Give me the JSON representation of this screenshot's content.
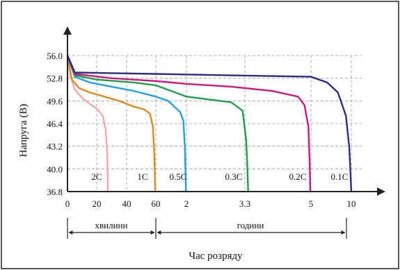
{
  "header_text": "",
  "chart_data": {
    "type": "line",
    "ylabel": "Напруга (В)",
    "xlabel": "Час розряду",
    "y_ticks": [
      "56.0",
      "52.8",
      "49.6",
      "46.4",
      "43.2",
      "40.0",
      "36.8"
    ],
    "x_ticks": [
      "0",
      "20",
      "40",
      "60",
      "2",
      "3.3",
      "5",
      "10"
    ],
    "ylim": [
      36.8,
      56.0
    ],
    "x_scale": "piecewise: minutes 0–60 on the left section, hours 1–10 on the right section",
    "grid": true,
    "units_minutes": "хвилини",
    "units_hours": "години",
    "series": [
      {
        "name": "2C",
        "color": "#f4a7b0",
        "points": [
          [
            0,
            56.0
          ],
          [
            2,
            53.2
          ],
          [
            5,
            51.2
          ],
          [
            10,
            50.0
          ],
          [
            15,
            49.2
          ],
          [
            20,
            48.5
          ],
          [
            24,
            47.5
          ],
          [
            26,
            45.5
          ],
          [
            27,
            42.0
          ],
          [
            27.5,
            36.8
          ]
        ]
      },
      {
        "name": "1C",
        "color": "#e08a1e",
        "points": [
          [
            0,
            56.0
          ],
          [
            3,
            52.6
          ],
          [
            8,
            51.4
          ],
          [
            15,
            50.8
          ],
          [
            25,
            50.2
          ],
          [
            35,
            49.6
          ],
          [
            45,
            48.8
          ],
          [
            52,
            48.4
          ],
          [
            56,
            47.8
          ],
          [
            58,
            46.0
          ],
          [
            59,
            42.0
          ],
          [
            59.6,
            36.8
          ]
        ]
      },
      {
        "name": "0.5C",
        "color": "#1aa3e0",
        "points": [
          [
            0,
            56.0
          ],
          [
            5,
            53.0
          ],
          [
            15,
            52.2
          ],
          [
            30,
            51.6
          ],
          [
            45,
            51.0
          ],
          [
            60,
            50.2
          ],
          [
            84,
            49.6
          ],
          [
            96,
            48.8
          ],
          [
            108,
            48.0
          ],
          [
            114,
            46.8
          ],
          [
            117,
            43.0
          ],
          [
            119,
            36.8
          ]
        ]
      },
      {
        "name": "0.3C",
        "color": "#1e9e4a",
        "points": [
          [
            0,
            56.0
          ],
          [
            5,
            53.2
          ],
          [
            20,
            52.6
          ],
          [
            45,
            52.2
          ],
          [
            60,
            51.8
          ],
          [
            90,
            51.0
          ],
          [
            120,
            50.2
          ],
          [
            150,
            49.8
          ],
          [
            180,
            49.4
          ],
          [
            195,
            48.2
          ],
          [
            200,
            44.0
          ],
          [
            202,
            40.0
          ],
          [
            203,
            36.8
          ]
        ]
      },
      {
        "name": "0.2C",
        "color": "#d0167e",
        "points": [
          [
            0,
            56.0
          ],
          [
            5,
            53.4
          ],
          [
            30,
            52.8
          ],
          [
            60,
            52.4
          ],
          [
            120,
            52.0
          ],
          [
            180,
            51.6
          ],
          [
            240,
            51.0
          ],
          [
            280,
            50.2
          ],
          [
            290,
            49.0
          ],
          [
            296,
            46.0
          ],
          [
            298,
            41.0
          ],
          [
            299,
            36.8
          ]
        ]
      },
      {
        "name": "0.1C",
        "color": "#2b2c8a",
        "points": [
          [
            0,
            56.0
          ],
          [
            5,
            53.6
          ],
          [
            60,
            53.4
          ],
          [
            180,
            53.2
          ],
          [
            300,
            53.0
          ],
          [
            420,
            52.2
          ],
          [
            500,
            50.8
          ],
          [
            560,
            47.5
          ],
          [
            585,
            43.0
          ],
          [
            595,
            39.0
          ],
          [
            600,
            36.8
          ]
        ]
      }
    ]
  }
}
